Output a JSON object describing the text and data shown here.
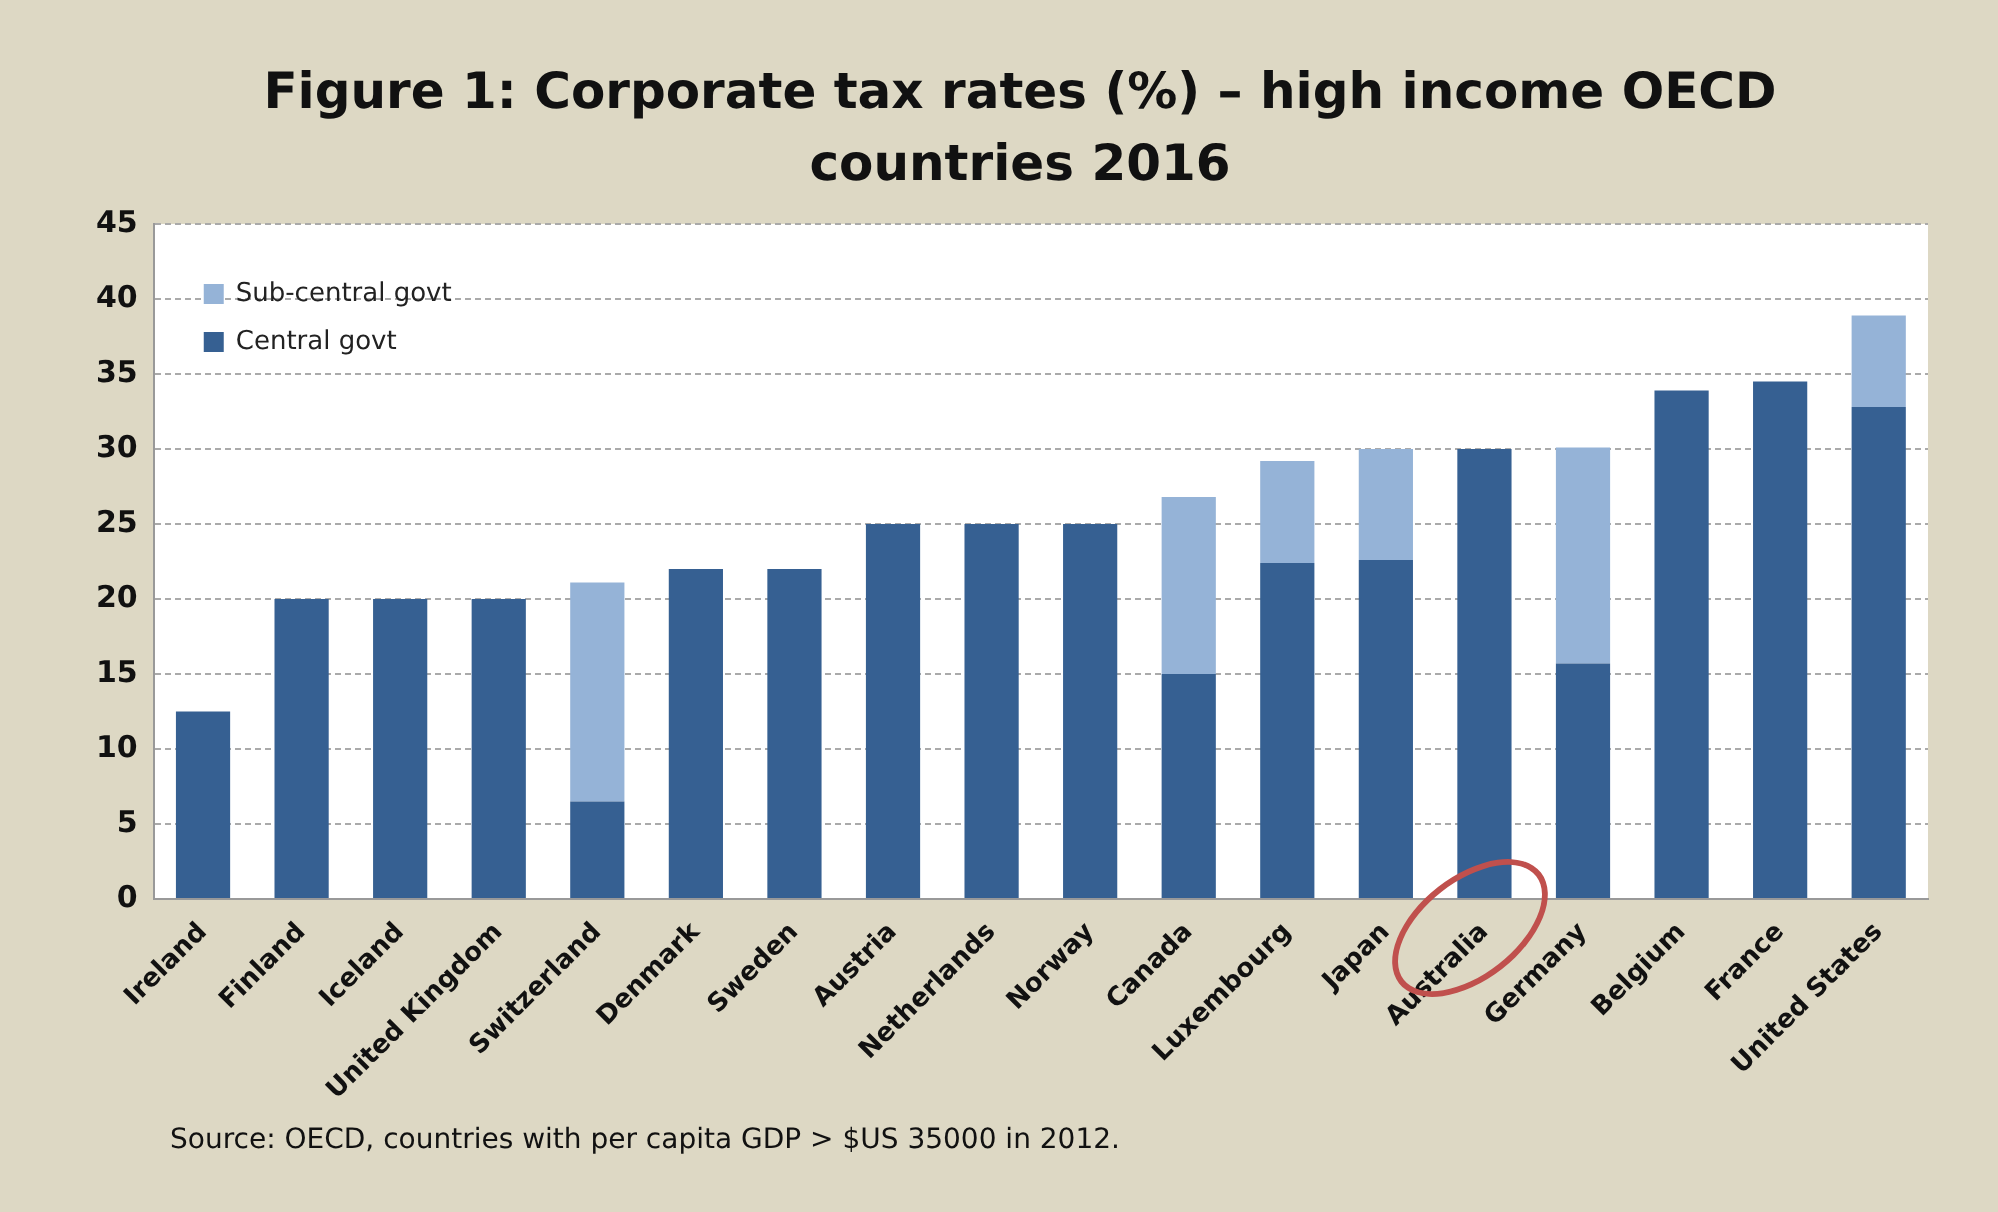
{
  "chart_data": {
    "type": "bar",
    "title": "Figure 1: Corporate tax rates (%) – high income OECD countries 2016",
    "categories": [
      "Ireland",
      "Finland",
      "Iceland",
      "United Kingdom",
      "Switzerland",
      "Denmark",
      "Sweden",
      "Austria",
      "Netherlands",
      "Norway",
      "Canada",
      "Luxembourg",
      "Japan",
      "Australia",
      "Germany",
      "Belgium",
      "France",
      "United States"
    ],
    "series": [
      {
        "name": "Central govt",
        "color": "#366092",
        "values": [
          12.5,
          20,
          20,
          20,
          6.5,
          22,
          22,
          25,
          25,
          25,
          15,
          22.4,
          22.6,
          30,
          15.7,
          33.9,
          34.5,
          32.8
        ]
      },
      {
        "name": "Sub-central govt",
        "color": "#95b3d7",
        "values": [
          null,
          null,
          null,
          null,
          14.6,
          null,
          null,
          null,
          null,
          null,
          11.8,
          6.8,
          7.4,
          null,
          14.4,
          null,
          null,
          6.1
        ]
      }
    ],
    "stacked": true,
    "ylim": [
      0,
      45
    ],
    "yticks": [
      0,
      5,
      10,
      15,
      20,
      25,
      30,
      35,
      40,
      45
    ],
    "grid": "y",
    "legend": "top left",
    "annotations": [
      "Source: OECD, countries with per capita GDP > $US 35000  in 2012."
    ]
  }
}
